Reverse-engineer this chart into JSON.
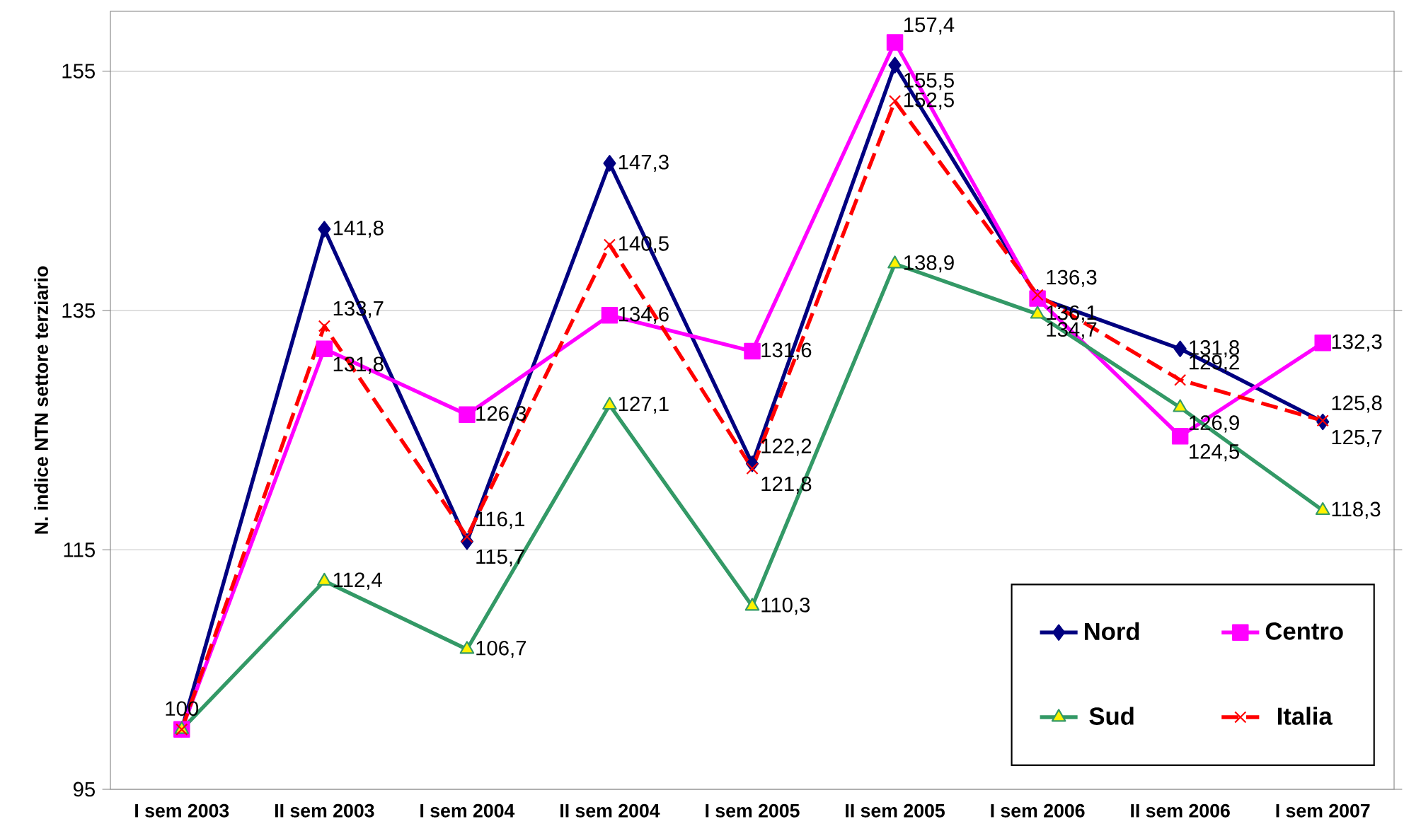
{
  "chart_data": {
    "type": "line",
    "ylabel": "N. indice NTN settore terziario",
    "categories": [
      "I sem 2003",
      "II sem 2003",
      "I sem 2004",
      "II sem 2004",
      "I sem 2005",
      "II sem 2005",
      "I sem 2006",
      "II sem 2006",
      "I sem 2007"
    ],
    "series": [
      {
        "name": "Nord",
        "color": "#000080",
        "marker": "diamond",
        "line_style": "solid",
        "values": [
          100,
          141.8,
          115.7,
          147.3,
          122.2,
          155.5,
          136.1,
          131.8,
          125.7
        ],
        "value_labels": [
          null,
          "141,8",
          "115,7",
          "147,3",
          "122,2",
          "155,5",
          "136,1",
          "131,8",
          "125,7"
        ]
      },
      {
        "name": "Centro",
        "color": "#ff00ff",
        "marker": "square",
        "line_style": "solid",
        "values": [
          100,
          131.8,
          126.3,
          134.6,
          131.6,
          157.4,
          136,
          124.5,
          132.3
        ],
        "value_labels": [
          null,
          "131,8",
          "126,3",
          "134,6",
          "131,6",
          "157,4",
          null,
          "124,5",
          "132,3"
        ]
      },
      {
        "name": "Sud",
        "color": "#339966",
        "marker": "triangle",
        "line_style": "solid",
        "values": [
          100,
          112.4,
          106.7,
          127.1,
          110.3,
          138.9,
          134.7,
          126.9,
          118.3
        ],
        "value_labels": [
          null,
          "112,4",
          "106,7",
          "127,1",
          "110,3",
          "138,9",
          "134,7",
          "126,9",
          "118,3"
        ]
      },
      {
        "name": "Italia",
        "color": "#ff0000",
        "marker": "cross",
        "line_style": "dashed",
        "values": [
          100,
          133.7,
          116.1,
          140.5,
          121.8,
          152.5,
          136.3,
          129.2,
          125.8
        ],
        "value_labels": [
          "100",
          "133,7",
          "116,1",
          "140,5",
          "121,8",
          "152,5",
          "136,3",
          "129,2",
          "125,8"
        ]
      }
    ],
    "ylim": [
      95,
      160
    ],
    "yticks": [
      95,
      115,
      135,
      155
    ],
    "grid": "y",
    "legend": "bottom right"
  }
}
